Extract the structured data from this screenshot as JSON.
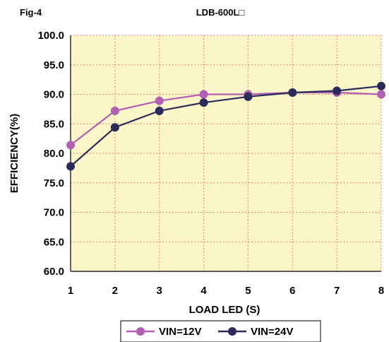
{
  "figure_label": "Fig-4",
  "chart_data": {
    "type": "line",
    "title": "LDB-600L□",
    "xlabel": "LOAD LED (S)",
    "ylabel": "EFFICIENCY(%)",
    "x": [
      1,
      2,
      3,
      4,
      5,
      6,
      7,
      8
    ],
    "x_tick_labels": [
      "1",
      "2",
      "3",
      "4",
      "5",
      "6",
      "7",
      "8"
    ],
    "ylim": [
      60.0,
      100.0
    ],
    "y_tick_labels": [
      "60.0",
      "65.0",
      "70.0",
      "75.0",
      "80.0",
      "85.0",
      "90.0",
      "95.0",
      "100.0"
    ],
    "grid": "dotted red",
    "plot_background": "#fbf6c8",
    "legend_position": "bottom",
    "series": [
      {
        "name": "VIN=12V",
        "color": "#b25eb4",
        "marker": "circle",
        "values": [
          81.4,
          87.2,
          88.9,
          90.0,
          90.0,
          90.3,
          90.3,
          90.0
        ]
      },
      {
        "name": "VIN=24V",
        "color": "#2b2b5a",
        "marker": "circle",
        "values": [
          77.8,
          84.4,
          87.2,
          88.6,
          89.6,
          90.3,
          90.6,
          91.4
        ]
      }
    ]
  }
}
